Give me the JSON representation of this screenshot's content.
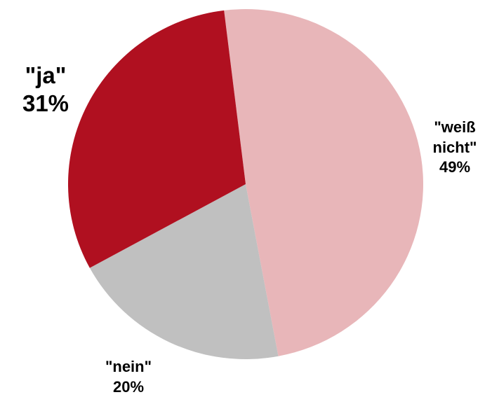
{
  "chart_data": {
    "type": "pie",
    "title": "",
    "slices": [
      {
        "label": "\"weiß nicht\"",
        "label_lines": [
          "\"weiß",
          "nicht\""
        ],
        "pct_label": "49%",
        "value": 49,
        "color": "#e8b6b9"
      },
      {
        "label": "\"nein\"",
        "label_lines": [
          "\"nein\""
        ],
        "pct_label": "20%",
        "value": 20,
        "color": "#c0c0c0"
      },
      {
        "label": "\"ja\"",
        "label_lines": [
          "\"ja\""
        ],
        "pct_label": "31%",
        "value": 31,
        "color": "#b01020"
      }
    ],
    "start_direction": "top, slightly right of center",
    "direction": "clockwise",
    "legend": "none"
  }
}
